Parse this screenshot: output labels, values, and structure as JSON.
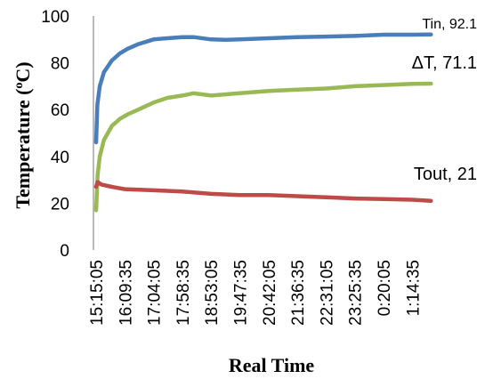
{
  "chart_data": {
    "type": "line",
    "title": "",
    "xlabel": "Real Time",
    "ylabel": "Temperature (°C)",
    "ylabel_parts": {
      "prefix": "Temperature (",
      "superscript": "o",
      "suffix": "C)"
    },
    "ylim": [
      0,
      100
    ],
    "yticks": [
      "0",
      "20",
      "40",
      "60",
      "80",
      "100"
    ],
    "x_ticks": [
      "15:15:05",
      "16:09:35",
      "17:04:05",
      "17:58:35",
      "18:53:05",
      "19:47:35",
      "20:42:05",
      "21:36:35",
      "22:31:05",
      "23:25:35",
      "0:20:05",
      "1:14:35"
    ],
    "grid": false,
    "legend": "none",
    "series": [
      {
        "name": "Tin",
        "end_label": "Tin, 92.1",
        "color": "#4a7ebb",
        "points": [
          [
            "15:15:05",
            46
          ],
          [
            "15:17:30",
            62
          ],
          [
            "15:22:00",
            70
          ],
          [
            "15:30:00",
            76
          ],
          [
            "15:45:00",
            81
          ],
          [
            "16:00:00",
            84
          ],
          [
            "16:15:00",
            86
          ],
          [
            "16:35:00",
            88
          ],
          [
            "17:04:05",
            90
          ],
          [
            "17:30:00",
            90.5
          ],
          [
            "17:58:35",
            91
          ],
          [
            "18:20:00",
            91
          ],
          [
            "18:53:05",
            90
          ],
          [
            "19:20:00",
            89.8
          ],
          [
            "19:47:35",
            90
          ],
          [
            "20:42:05",
            90.5
          ],
          [
            "21:36:35",
            91
          ],
          [
            "22:31:05",
            91.2
          ],
          [
            "23:25:35",
            91.5
          ],
          [
            "0:20:05",
            92
          ],
          [
            "1:14:35",
            92
          ],
          [
            "1:50:00",
            92.1
          ]
        ]
      },
      {
        "name": "ΔT",
        "end_label": "ΔT, 71.1",
        "color": "#98b954",
        "points": [
          [
            "15:15:05",
            17
          ],
          [
            "15:18:00",
            32
          ],
          [
            "15:22:00",
            40
          ],
          [
            "15:30:00",
            47
          ],
          [
            "15:45:00",
            53
          ],
          [
            "16:00:00",
            56
          ],
          [
            "16:15:00",
            58
          ],
          [
            "16:35:00",
            60
          ],
          [
            "17:04:05",
            63
          ],
          [
            "17:30:00",
            65
          ],
          [
            "17:58:35",
            66
          ],
          [
            "18:20:00",
            67
          ],
          [
            "18:53:05",
            66
          ],
          [
            "19:20:00",
            66.5
          ],
          [
            "19:47:35",
            67
          ],
          [
            "20:42:05",
            68
          ],
          [
            "21:36:35",
            68.5
          ],
          [
            "22:31:05",
            69
          ],
          [
            "23:25:35",
            70
          ],
          [
            "0:20:05",
            70.5
          ],
          [
            "1:14:35",
            71
          ],
          [
            "1:50:00",
            71.1
          ]
        ]
      },
      {
        "name": "Tout",
        "end_label": "Tout, 21",
        "color": "#be4b48",
        "points": [
          [
            "15:15:05",
            27
          ],
          [
            "15:18:00",
            29
          ],
          [
            "15:25:00",
            28
          ],
          [
            "15:45:00",
            27
          ],
          [
            "16:09:35",
            26
          ],
          [
            "17:04:05",
            25.5
          ],
          [
            "17:58:35",
            25
          ],
          [
            "18:53:05",
            24
          ],
          [
            "19:47:35",
            23.5
          ],
          [
            "20:42:05",
            23.5
          ],
          [
            "21:36:35",
            23
          ],
          [
            "22:31:05",
            22.5
          ],
          [
            "23:25:35",
            22
          ],
          [
            "0:20:05",
            21.8
          ],
          [
            "1:14:35",
            21.5
          ],
          [
            "1:50:00",
            21
          ]
        ]
      }
    ]
  }
}
